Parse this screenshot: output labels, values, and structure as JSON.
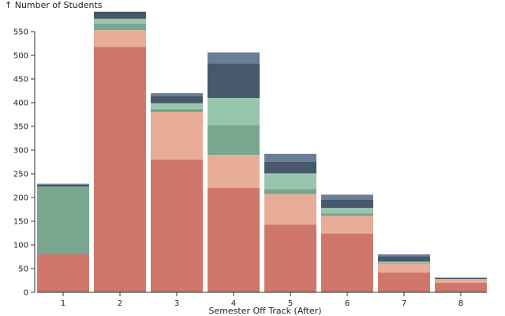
{
  "chart_data": {
    "type": "bar",
    "stacked": true,
    "title": "",
    "xlabel": "Semester Off Track (After)",
    "ylabel": "↑ Number of Students",
    "ylim": [
      0,
      590
    ],
    "yticks": [
      0,
      50,
      100,
      150,
      200,
      250,
      300,
      350,
      400,
      450,
      500,
      550
    ],
    "grid": false,
    "legend": "none",
    "categories": [
      "1",
      "2",
      "3",
      "4",
      "5",
      "6",
      "7",
      "8"
    ],
    "series": [
      {
        "color": "#cf776b",
        "values": [
          80,
          518,
          280,
          220,
          143,
          124,
          42,
          20
        ]
      },
      {
        "color": "#e8ad98",
        "values": [
          0,
          35,
          100,
          70,
          64,
          37,
          18,
          7
        ]
      },
      {
        "color": "#7aa68f",
        "values": [
          143,
          14,
          7,
          63,
          11,
          6,
          1,
          0
        ]
      },
      {
        "color": "#98c6ad",
        "values": [
          0,
          10,
          12,
          57,
          33,
          11,
          4,
          1
        ]
      },
      {
        "color": "#46586a",
        "values": [
          4,
          15,
          15,
          73,
          24,
          17,
          11,
          2
        ]
      },
      {
        "color": "#6a7e96",
        "values": [
          2,
          0,
          6,
          23,
          17,
          11,
          4,
          1
        ]
      }
    ]
  }
}
